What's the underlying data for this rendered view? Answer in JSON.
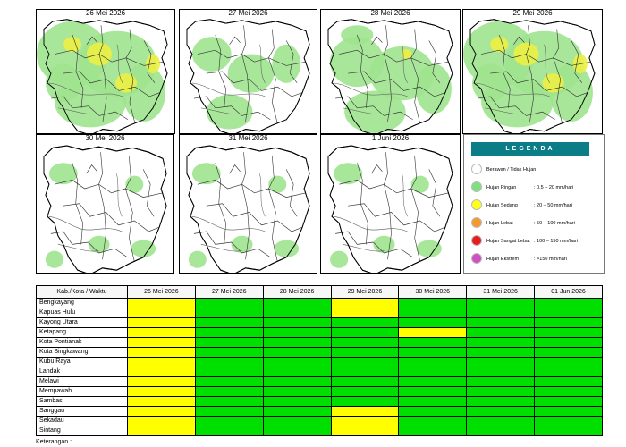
{
  "maps": [
    {
      "date": "26 Mei 2026",
      "level": "mixed"
    },
    {
      "date": "27 Mei 2026",
      "level": "light"
    },
    {
      "date": "28 Mei 2026",
      "level": "moderate"
    },
    {
      "date": "29 Mei 2026",
      "level": "mixed"
    },
    {
      "date": "30 Mei 2026",
      "level": "sparse"
    },
    {
      "date": "31 Mei 2026",
      "level": "sparse"
    },
    {
      "date": "1 Juni 2026",
      "level": "sparse"
    }
  ],
  "legend": {
    "title": "LEGENDA",
    "items": [
      {
        "label": "Berawan / Tidak Hujan",
        "range": "",
        "color": "#ffffff"
      },
      {
        "label": "Hujan Ringan",
        "range": ": 0.5 – 20 mm/hari",
        "color": "#7ee07e"
      },
      {
        "label": "Hujan Sedang",
        "range": ": 20 – 50 mm/hari",
        "color": "#ffff1a"
      },
      {
        "label": "Hujan Lebat",
        "range": ": 50 – 100 mm/hari",
        "color": "#f39a2b"
      },
      {
        "label": "Hujan Sangat Lebat",
        "range": ": 100 – 150 mm/hari",
        "color": "#e81d1d"
      },
      {
        "label": "Hujan Ekstrem",
        "range": ": >150 mm/hari",
        "color": "#d04fc2"
      }
    ]
  },
  "colors": {
    "green": "#00e000",
    "yellow": "#ffff00",
    "map_light": "#9ee38f",
    "map_yellow": "#ecef44"
  },
  "table": {
    "header": [
      "Kab./Kota / Waktu",
      "26 Mei 2026",
      "27 Mei 2026",
      "28 Mei 2026",
      "29 Mei 2026",
      "30 Mei 2026",
      "31 Mei 2026",
      "01 Jun 2026"
    ],
    "rows": [
      {
        "name": "Bengkayang",
        "cells": [
          "Y",
          "G",
          "G",
          "Y",
          "G",
          "G",
          "G"
        ]
      },
      {
        "name": "Kapuas Hulu",
        "cells": [
          "Y",
          "G",
          "G",
          "Y",
          "G",
          "G",
          "G"
        ]
      },
      {
        "name": "Kayong Utara",
        "cells": [
          "Y",
          "G",
          "G",
          "G",
          "G",
          "G",
          "G"
        ]
      },
      {
        "name": "Ketapang",
        "cells": [
          "Y",
          "G",
          "G",
          "G",
          "Y",
          "G",
          "G"
        ]
      },
      {
        "name": "Kota Pontianak",
        "cells": [
          "Y",
          "G",
          "G",
          "G",
          "G",
          "G",
          "G"
        ]
      },
      {
        "name": "Kota Singkawang",
        "cells": [
          "Y",
          "G",
          "G",
          "G",
          "G",
          "G",
          "G"
        ]
      },
      {
        "name": "Kubu Raya",
        "cells": [
          "Y",
          "G",
          "G",
          "G",
          "G",
          "G",
          "G"
        ]
      },
      {
        "name": "Landak",
        "cells": [
          "Y",
          "G",
          "G",
          "G",
          "G",
          "G",
          "G"
        ]
      },
      {
        "name": "Melawi",
        "cells": [
          "Y",
          "G",
          "G",
          "G",
          "G",
          "G",
          "G"
        ]
      },
      {
        "name": "Mempawah",
        "cells": [
          "Y",
          "G",
          "G",
          "G",
          "G",
          "G",
          "G"
        ]
      },
      {
        "name": "Sambas",
        "cells": [
          "Y",
          "G",
          "G",
          "G",
          "G",
          "G",
          "G"
        ]
      },
      {
        "name": "Sanggau",
        "cells": [
          "Y",
          "G",
          "G",
          "Y",
          "G",
          "G",
          "G"
        ]
      },
      {
        "name": "Sekadau",
        "cells": [
          "Y",
          "G",
          "G",
          "Y",
          "G",
          "G",
          "G"
        ]
      },
      {
        "name": "Sintang",
        "cells": [
          "Y",
          "G",
          "G",
          "Y",
          "G",
          "G",
          "G"
        ]
      }
    ]
  },
  "note": "Keterangan :"
}
